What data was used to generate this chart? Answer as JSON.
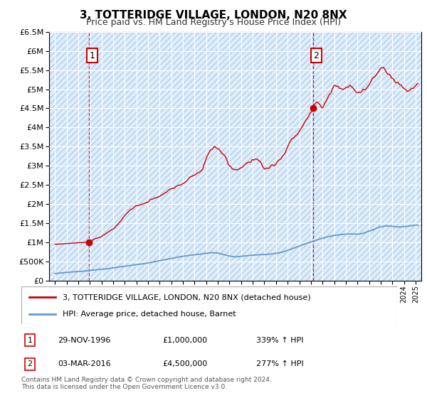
{
  "title": "3, TOTTERIDGE VILLAGE, LONDON, N20 8NX",
  "subtitle": "Price paid vs. HM Land Registry's House Price Index (HPI)",
  "legend_line1": "3, TOTTERIDGE VILLAGE, LONDON, N20 8NX (detached house)",
  "legend_line2": "HPI: Average price, detached house, Barnet",
  "sale1_date": "29-NOV-1996",
  "sale1_price": "£1,000,000",
  "sale1_hpi": "339% ↑ HPI",
  "sale1_year": 1996.91,
  "sale1_value": 1000000,
  "sale2_date": "03-MAR-2016",
  "sale2_price": "£4,500,000",
  "sale2_hpi": "277% ↑ HPI",
  "sale2_year": 2016.17,
  "sale2_value": 4500000,
  "footer1": "Contains HM Land Registry data © Crown copyright and database right 2024.",
  "footer2": "This data is licensed under the Open Government Licence v3.0.",
  "ylim": [
    0,
    6500000
  ],
  "xlim_left": 1993.5,
  "xlim_right": 2025.5,
  "red_color": "#cc0000",
  "blue_color": "#6699cc",
  "bg_color": "#ddeeff",
  "hatch_color": "#bbccdd",
  "grid_color": "#ffffff",
  "vline_color": "#cc0000",
  "hpi_years": [
    1994,
    1994.5,
    1995,
    1995.5,
    1996,
    1996.5,
    1997,
    1997.5,
    1998,
    1998.5,
    1999,
    1999.5,
    2000,
    2000.5,
    2001,
    2001.5,
    2002,
    2002.5,
    2003,
    2003.5,
    2004,
    2004.5,
    2005,
    2005.5,
    2006,
    2006.5,
    2007,
    2007.5,
    2008,
    2008.5,
    2009,
    2009.5,
    2010,
    2010.5,
    2011,
    2011.5,
    2012,
    2012.5,
    2013,
    2013.5,
    2014,
    2014.5,
    2015,
    2015.5,
    2016,
    2016.5,
    2017,
    2017.5,
    2018,
    2018.5,
    2019,
    2019.5,
    2020,
    2020.5,
    2021,
    2021.5,
    2022,
    2022.5,
    2023,
    2023.5,
    2024,
    2024.5,
    2025
  ],
  "hpi_values": [
    185000,
    200000,
    215000,
    225000,
    235000,
    245000,
    265000,
    280000,
    295000,
    310000,
    330000,
    355000,
    375000,
    395000,
    415000,
    435000,
    460000,
    490000,
    520000,
    550000,
    580000,
    610000,
    635000,
    655000,
    675000,
    695000,
    715000,
    730000,
    720000,
    680000,
    640000,
    620000,
    635000,
    650000,
    665000,
    675000,
    680000,
    690000,
    710000,
    740000,
    790000,
    845000,
    900000,
    960000,
    1010000,
    1060000,
    1110000,
    1150000,
    1180000,
    1200000,
    1215000,
    1220000,
    1210000,
    1235000,
    1290000,
    1350000,
    1410000,
    1430000,
    1420000,
    1400000,
    1410000,
    1430000,
    1450000
  ]
}
